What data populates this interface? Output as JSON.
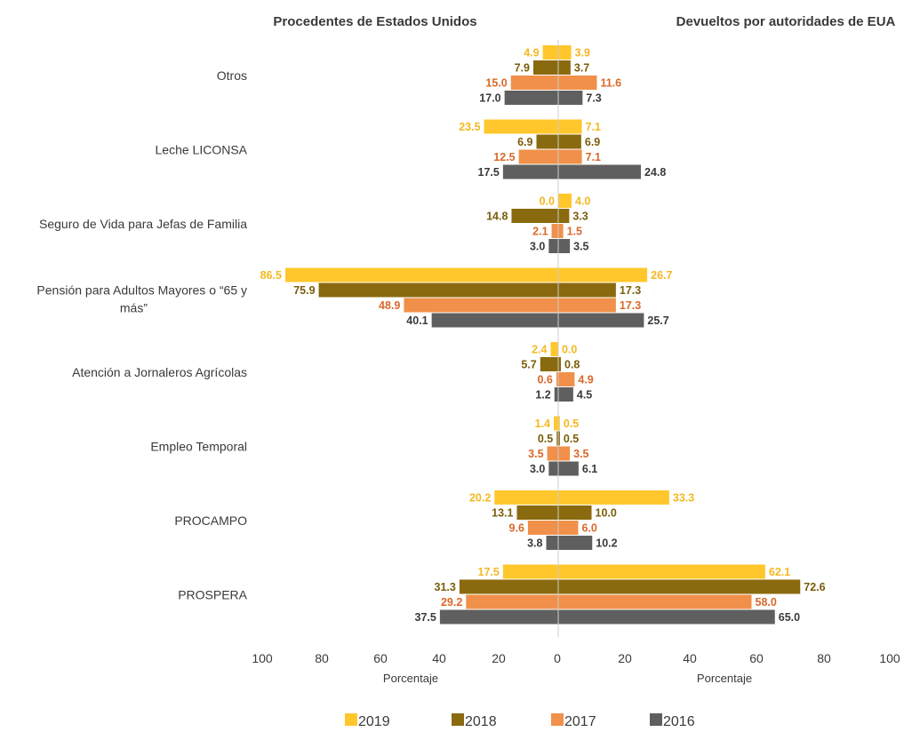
{
  "chart_data": {
    "type": "bar",
    "orientation": "horizontal-diverging",
    "panels": [
      {
        "title": "Procedentes de Estados Unidos",
        "side": "left",
        "xlabel": "Porcentaje"
      },
      {
        "title": "Devueltos por autoridades de EUA",
        "side": "right",
        "xlabel": "Porcentaje"
      }
    ],
    "categories": [
      [
        "Otros"
      ],
      [
        "Leche LICONSA"
      ],
      [
        "Seguro de Vida para Jefas de Familia"
      ],
      [
        "Pensión para Adultos Mayores o “65 y",
        "más”"
      ],
      [
        "Atención a Jornaleros Agrícolas"
      ],
      [
        "Empleo Temporal"
      ],
      [
        "PROCAMPO"
      ],
      [
        "PROSPERA"
      ]
    ],
    "ticks": [
      "100",
      "80",
      "60",
      "40",
      "20",
      "0",
      "20",
      "40",
      "60",
      "80",
      "100"
    ],
    "xlim": [
      0,
      100
    ],
    "grid": false,
    "legend_position": "bottom",
    "series": [
      {
        "name": "2019",
        "color": "#FFC72C",
        "label_color": "#F5B820",
        "left": [
          "4.9",
          "23.5",
          "0.0",
          "86.5",
          "2.4",
          "1.4",
          "20.2",
          "17.5"
        ],
        "right": [
          "3.9",
          "7.1",
          "4.0",
          "26.7",
          "0.0",
          "0.5",
          "33.3",
          "62.1"
        ]
      },
      {
        "name": "2018",
        "color": "#8A6A0E",
        "label_color": "#7A5C08",
        "left": [
          "7.9",
          "6.9",
          "14.8",
          "75.9",
          "5.7",
          "0.5",
          "13.1",
          "31.3"
        ],
        "right": [
          "3.7",
          "6.9",
          "3.3",
          "17.3",
          "0.8",
          "0.5",
          "10.0",
          "72.6"
        ]
      },
      {
        "name": "2017",
        "color": "#F0904A",
        "label_color": "#D9682A",
        "left": [
          "15.0",
          "12.5",
          "2.1",
          "48.9",
          "0.6",
          "3.5",
          "9.6",
          "29.2"
        ],
        "right": [
          "11.6",
          "7.1",
          "1.5",
          "17.3",
          "4.9",
          "3.5",
          "6.0",
          "58.0"
        ]
      },
      {
        "name": "2016",
        "color": "#5F5F5F",
        "label_color": "#3a3a3a",
        "left": [
          "17.0",
          "17.5",
          "3.0",
          "40.1",
          "1.2",
          "3.0",
          "3.8",
          "37.5"
        ],
        "right": [
          "7.3",
          "24.8",
          "3.5",
          "25.7",
          "4.5",
          "6.1",
          "10.2",
          "65.0"
        ]
      }
    ]
  }
}
